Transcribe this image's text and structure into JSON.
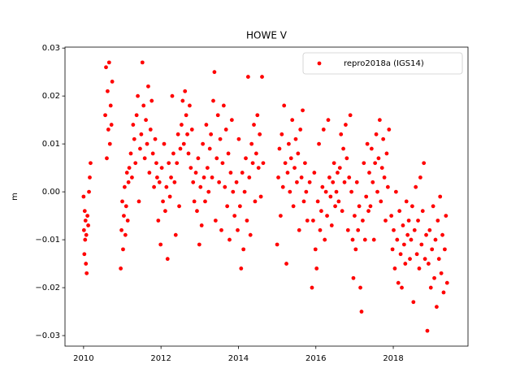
{
  "chart_data": {
    "type": "scatter",
    "title": "HOWE V",
    "ylabel": "m",
    "xlim": [
      2009.52,
      2019.93
    ],
    "ylim": [
      -0.0322,
      0.0302
    ],
    "xticks": [
      2010,
      2012,
      2014,
      2016,
      2018
    ],
    "yticks": [
      {
        "value": -0.03,
        "label": "−0.03"
      },
      {
        "value": -0.02,
        "label": "−0.02"
      },
      {
        "value": -0.01,
        "label": "−0.01"
      },
      {
        "value": 0,
        "label": "0.00"
      },
      0.01,
      0.02,
      0.03
    ],
    "legend": "upper right",
    "grid": false,
    "series": [
      {
        "name": "repro2018a (IGS14)",
        "color": "#ff0000",
        "x": [
          2010.0,
          2010.01,
          2010.02,
          2010.03,
          2010.04,
          2010.05,
          2010.06,
          2010.07,
          2010.08,
          2010.1,
          2010.12,
          2010.14,
          2010.16,
          2010.18,
          2010.56,
          2010.58,
          2010.6,
          2010.62,
          2010.64,
          2010.66,
          2010.68,
          2010.7,
          2010.72,
          2010.74,
          2010.96,
          2010.98,
          2011.0,
          2011.02,
          2011.04,
          2011.06,
          2011.08,
          2011.1,
          2011.12,
          2011.14,
          2011.16,
          2011.18,
          2011.22,
          2011.25,
          2011.28,
          2011.31,
          2011.34,
          2011.37,
          2011.4,
          2011.43,
          2011.46,
          2011.49,
          2011.52,
          2011.55,
          2011.58,
          2011.61,
          2011.64,
          2011.67,
          2011.7,
          2011.73,
          2011.76,
          2011.79,
          2011.82,
          2011.85,
          2011.88,
          2011.9,
          2011.93,
          2011.96,
          2011.99,
          2012.02,
          2012.05,
          2012.08,
          2012.11,
          2012.14,
          2012.17,
          2012.2,
          2012.23,
          2012.26,
          2012.29,
          2012.32,
          2012.35,
          2012.38,
          2012.41,
          2012.44,
          2012.47,
          2012.5,
          2012.53,
          2012.56,
          2012.59,
          2012.62,
          2012.65,
          2012.68,
          2012.71,
          2012.74,
          2012.77,
          2012.8,
          2012.83,
          2012.86,
          2012.9,
          2012.93,
          2012.96,
          2012.99,
          2013.02,
          2013.05,
          2013.08,
          2013.11,
          2013.14,
          2013.17,
          2013.2,
          2013.23,
          2013.26,
          2013.29,
          2013.32,
          2013.35,
          2013.38,
          2013.41,
          2013.44,
          2013.47,
          2013.5,
          2013.53,
          2013.56,
          2013.59,
          2013.62,
          2013.65,
          2013.68,
          2013.71,
          2013.74,
          2013.77,
          2013.8,
          2013.83,
          2013.86,
          2013.9,
          2013.95,
          2013.98,
          2014.01,
          2014.04,
          2014.07,
          2014.1,
          2014.13,
          2014.16,
          2014.19,
          2014.22,
          2014.25,
          2014.28,
          2014.31,
          2014.34,
          2014.37,
          2014.4,
          2014.43,
          2014.46,
          2014.49,
          2014.52,
          2014.55,
          2014.58,
          2014.61,
          2014.64,
          2015.0,
          2015.03,
          2015.06,
          2015.09,
          2015.12,
          2015.15,
          2015.18,
          2015.21,
          2015.24,
          2015.27,
          2015.3,
          2015.33,
          2015.36,
          2015.39,
          2015.42,
          2015.45,
          2015.48,
          2015.51,
          2015.54,
          2015.57,
          2015.6,
          2015.63,
          2015.66,
          2015.69,
          2015.72,
          2015.75,
          2015.78,
          2015.84,
          2015.9,
          2015.93,
          2015.96,
          2015.99,
          2016.02,
          2016.05,
          2016.08,
          2016.11,
          2016.14,
          2016.17,
          2016.2,
          2016.23,
          2016.26,
          2016.29,
          2016.32,
          2016.35,
          2016.38,
          2016.41,
          2016.44,
          2016.47,
          2016.5,
          2016.53,
          2016.56,
          2016.59,
          2016.62,
          2016.65,
          2016.68,
          2016.71,
          2016.74,
          2016.77,
          2016.8,
          2016.83,
          2016.86,
          2016.89,
          2016.92,
          2016.95,
          2016.97,
          2017.0,
          2017.03,
          2017.06,
          2017.09,
          2017.12,
          2017.15,
          2017.18,
          2017.21,
          2017.24,
          2017.27,
          2017.3,
          2017.33,
          2017.36,
          2017.38,
          2017.41,
          2017.44,
          2017.47,
          2017.5,
          2017.53,
          2017.56,
          2017.59,
          2017.62,
          2017.65,
          2017.68,
          2017.71,
          2017.74,
          2017.77,
          2017.8,
          2017.83,
          2017.86,
          2017.89,
          2017.95,
          2017.98,
          2018.01,
          2018.04,
          2018.07,
          2018.1,
          2018.13,
          2018.16,
          2018.19,
          2018.22,
          2018.25,
          2018.28,
          2018.31,
          2018.34,
          2018.37,
          2018.4,
          2018.43,
          2018.46,
          2018.49,
          2018.52,
          2018.55,
          2018.58,
          2018.61,
          2018.64,
          2018.67,
          2018.7,
          2018.73,
          2018.76,
          2018.79,
          2018.82,
          2018.85,
          2018.88,
          2018.91,
          2018.94,
          2018.97,
          2019.0,
          2019.03,
          2019.06,
          2019.09,
          2019.12,
          2019.15,
          2019.18,
          2019.21,
          2019.24,
          2019.27,
          2019.3,
          2019.33,
          2019.36,
          2019.39
        ],
        "values": [
          -0.001,
          -0.008,
          -0.013,
          -0.004,
          -0.01,
          -0.006,
          -0.015,
          -0.009,
          -0.017,
          -0.005,
          -0.007,
          0.0,
          0.003,
          0.006,
          0.016,
          0.026,
          0.007,
          0.021,
          0.013,
          0.027,
          0.01,
          0.018,
          0.014,
          0.023,
          -0.016,
          -0.008,
          -0.002,
          -0.012,
          -0.005,
          0.001,
          -0.009,
          -0.003,
          0.004,
          -0.006,
          0.002,
          0.005,
          0.008,
          0.003,
          0.014,
          0.011,
          0.006,
          0.016,
          0.02,
          -0.002,
          0.009,
          0.012,
          0.027,
          0.018,
          0.007,
          0.015,
          0.01,
          0.022,
          0.004,
          0.013,
          0.019,
          0.008,
          0.001,
          0.011,
          0.006,
          0.003,
          -0.006,
          0.002,
          -0.011,
          0.005,
          -0.002,
          0.01,
          -0.004,
          0.001,
          -0.014,
          0.006,
          -0.001,
          0.003,
          0.02,
          0.008,
          0.002,
          -0.009,
          0.006,
          0.012,
          -0.003,
          0.009,
          0.014,
          0.019,
          0.01,
          0.021,
          0.016,
          0.012,
          0.008,
          0.018,
          0.005,
          0.013,
          0.002,
          -0.002,
          0.004,
          -0.004,
          0.007,
          -0.011,
          0.001,
          -0.007,
          0.01,
          0.003,
          -0.002,
          0.014,
          0.005,
          0.0,
          0.009,
          0.012,
          0.003,
          0.019,
          0.025,
          -0.006,
          0.007,
          0.016,
          0.002,
          0.011,
          -0.008,
          0.006,
          0.018,
          0.001,
          0.013,
          -0.003,
          0.008,
          -0.01,
          0.004,
          0.015,
          0.0,
          -0.005,
          0.002,
          -0.008,
          0.011,
          -0.003,
          -0.016,
          0.004,
          -0.012,
          0.0,
          0.007,
          -0.006,
          0.024,
          0.003,
          -0.009,
          0.01,
          0.006,
          0.014,
          -0.002,
          0.008,
          0.016,
          0.005,
          0.012,
          -0.001,
          0.024,
          0.006,
          -0.011,
          0.003,
          0.009,
          -0.005,
          0.012,
          0.001,
          0.018,
          0.006,
          -0.015,
          0.004,
          0.01,
          0.0,
          0.007,
          0.015,
          -0.003,
          0.005,
          0.011,
          0.002,
          0.008,
          -0.008,
          0.013,
          0.003,
          0.017,
          -0.002,
          0.006,
          0.0,
          -0.006,
          0.002,
          -0.02,
          -0.006,
          0.004,
          -0.012,
          -0.016,
          -0.002,
          0.01,
          -0.008,
          -0.004,
          0.001,
          0.013,
          -0.01,
          0.0,
          -0.005,
          0.015,
          0.003,
          -0.001,
          -0.007,
          0.002,
          0.006,
          -0.003,
          0.0,
          0.004,
          -0.002,
          0.005,
          0.012,
          -0.004,
          0.009,
          0.002,
          0.014,
          0.007,
          -0.008,
          0.003,
          0.016,
          0.0,
          -0.01,
          -0.018,
          -0.005,
          -0.012,
          0.002,
          -0.008,
          -0.003,
          -0.02,
          -0.025,
          -0.006,
          0.006,
          -0.01,
          -0.001,
          0.01,
          -0.004,
          0.004,
          -0.003,
          0.009,
          0.002,
          -0.01,
          0.006,
          0.012,
          0.0,
          0.007,
          0.015,
          -0.002,
          0.005,
          0.011,
          0.003,
          -0.006,
          0.008,
          0.001,
          0.013,
          -0.005,
          -0.012,
          -0.008,
          -0.016,
          0.0,
          -0.01,
          -0.019,
          -0.004,
          -0.013,
          -0.02,
          -0.007,
          -0.011,
          -0.015,
          -0.002,
          -0.009,
          -0.006,
          -0.014,
          -0.01,
          -0.003,
          -0.023,
          -0.008,
          0.001,
          -0.013,
          -0.006,
          -0.016,
          0.003,
          -0.011,
          -0.004,
          0.006,
          -0.014,
          -0.009,
          -0.029,
          -0.015,
          -0.008,
          -0.02,
          -0.012,
          -0.003,
          -0.018,
          -0.01,
          -0.024,
          -0.006,
          -0.014,
          -0.001,
          -0.017,
          -0.009,
          -0.021,
          -0.012,
          -0.005,
          -0.019
        ]
      }
    ]
  }
}
